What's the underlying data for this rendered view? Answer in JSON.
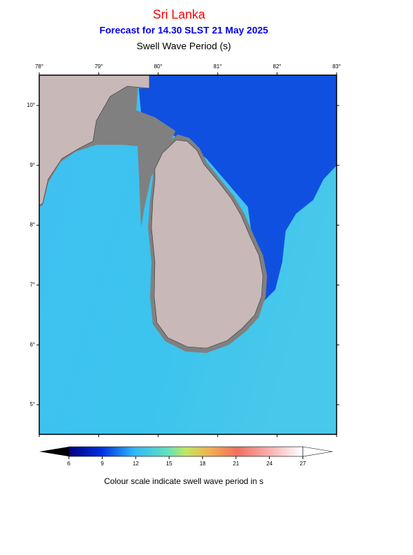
{
  "header": {
    "title": "Sri Lanka",
    "subtitle": "Forecast for  14.30 SLST 21 May 2025",
    "variable": "Swell Wave Period (s)"
  },
  "map": {
    "lon_ticks": [
      {
        "value": 78,
        "label": "78°"
      },
      {
        "value": 79,
        "label": "79°"
      },
      {
        "value": 80,
        "label": "80°"
      },
      {
        "value": 81,
        "label": "81°"
      },
      {
        "value": 82,
        "label": "82°"
      },
      {
        "value": 83,
        "label": "83°"
      }
    ],
    "lat_ticks": [
      {
        "value": 10,
        "label": "10°"
      },
      {
        "value": 9,
        "label": "9°"
      },
      {
        "value": 8,
        "label": "8°"
      },
      {
        "value": 7,
        "label": "7°"
      },
      {
        "value": 6,
        "label": "6°"
      },
      {
        "value": 5,
        "label": "5°"
      }
    ]
  },
  "colorbar": {
    "ticks": [
      6,
      9,
      12,
      15,
      18,
      21,
      24,
      27
    ],
    "caption": "Colour scale indicate swell wave period in s"
  }
}
